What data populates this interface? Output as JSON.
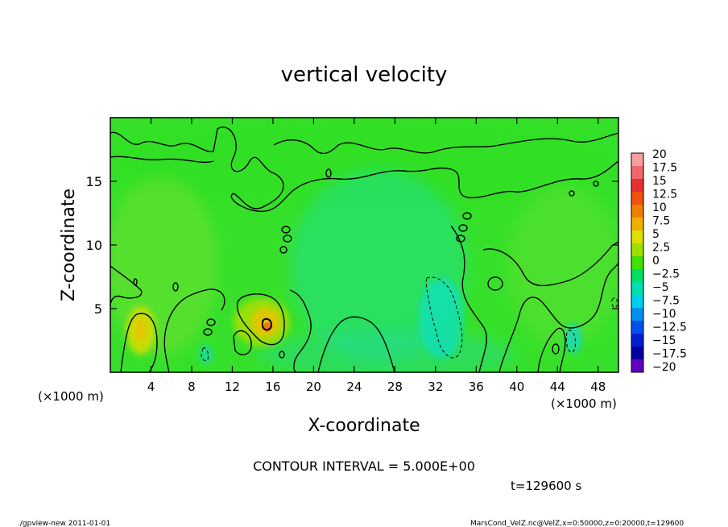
{
  "chart_data": {
    "type": "heatmap",
    "title": "vertical velocity",
    "xlabel": "X-coordinate",
    "ylabel": "Z-coordinate",
    "x_unit_label": "(×1000 m)",
    "x_unit_label_right": "(×1000 m)",
    "xlim": [
      0,
      50
    ],
    "ylim": [
      0,
      20
    ],
    "x_ticks": [
      4,
      8,
      12,
      16,
      20,
      24,
      28,
      32,
      36,
      40,
      44,
      48
    ],
    "y_ticks": [
      5,
      10,
      15
    ],
    "colorbar_levels": [
      20,
      17.5,
      15,
      12.5,
      10,
      7.5,
      5,
      2.5,
      0,
      -2.5,
      -5,
      -7.5,
      -10,
      -12.5,
      -15,
      -17.5,
      -20
    ],
    "colorbar_labels": [
      "20",
      "17.5",
      "15",
      "12.5",
      "10",
      "7.5",
      "5",
      "2.5",
      "0",
      "−2.5",
      "−5",
      "−7.5",
      "−10",
      "−12.5",
      "−15",
      "−17.5",
      "−20"
    ],
    "colorbar_colors": [
      "#f7a0a0",
      "#f06868",
      "#e83030",
      "#f05010",
      "#f08000",
      "#f0b000",
      "#e0e000",
      "#a0e000",
      "#40e000",
      "#00e060",
      "#00e0b0",
      "#00d0f0",
      "#0090f0",
      "#0050f0",
      "#0020d0",
      "#0000a0",
      "#6000c0"
    ],
    "features": [
      {
        "x": 3.0,
        "z": 3.2,
        "value": 7.5,
        "sign": "positive"
      },
      {
        "x": 15.5,
        "z": 3.8,
        "value": 10,
        "sign": "positive"
      },
      {
        "x": 6.5,
        "z": 6.5,
        "value": 5,
        "sign": "positive"
      },
      {
        "x": 32.5,
        "z": 4.5,
        "value": -5,
        "sign": "negative"
      },
      {
        "x": 45.5,
        "z": 2.5,
        "value": -5,
        "sign": "negative"
      },
      {
        "x": 9.5,
        "z": 1.2,
        "value": -2.5,
        "sign": "negative"
      }
    ]
  },
  "annotations": {
    "contour_interval": "CONTOUR INTERVAL = 5.000E+00",
    "time_label": "t=129600  s",
    "footer_left": "./gpview-new   2011-01-01",
    "footer_right": "MarsCond_VelZ.nc@VelZ,x=0:50000,z=0:20000,t=129600"
  }
}
